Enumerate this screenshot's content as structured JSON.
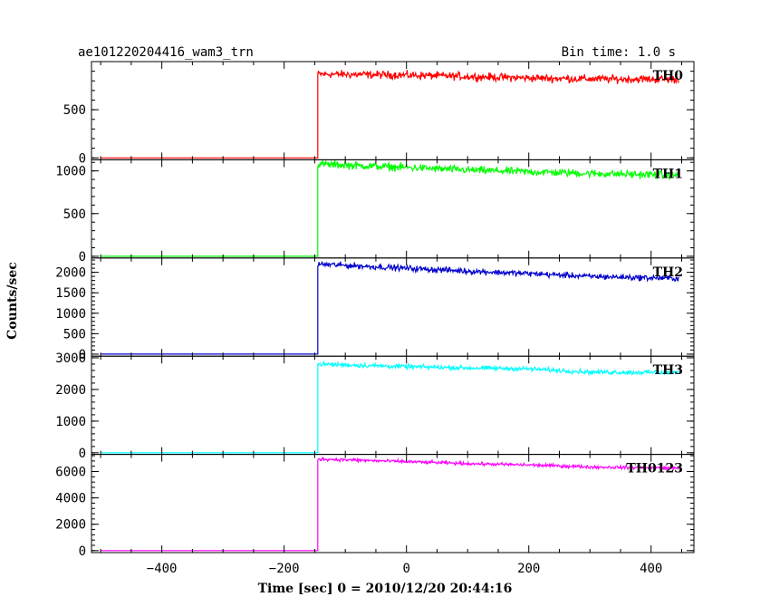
{
  "chart_data": {
    "type": "line",
    "title": "ae101220204416_wam3_trn",
    "subtitle": "Bin time: 1.0 s",
    "xlabel": "Time [sec] 0 = 2010/12/20 20:44:16",
    "ylabel": "Counts/sec",
    "xlim": [
      -515,
      470
    ],
    "xticks": [
      -400,
      -200,
      0,
      200,
      400
    ],
    "x_range": [
      -500,
      445
    ],
    "onset_x": -145,
    "grid": false,
    "panels": [
      {
        "name": "TH0",
        "color": "#ff0000",
        "ylim": [
          -20,
          1000
        ],
        "yticks": [
          0,
          500
        ],
        "baseline": 0,
        "noise": 40,
        "points": [
          [
            -145,
            870
          ],
          [
            0,
            860
          ],
          [
            100,
            845
          ],
          [
            200,
            830
          ],
          [
            300,
            820
          ],
          [
            445,
            815
          ]
        ]
      },
      {
        "name": "TH1",
        "color": "#00ff00",
        "ylim": [
          -20,
          1130
        ],
        "yticks": [
          0,
          500,
          1000
        ],
        "baseline": 0,
        "noise": 45,
        "points": [
          [
            -145,
            1080
          ],
          [
            0,
            1040
          ],
          [
            100,
            1010
          ],
          [
            200,
            990
          ],
          [
            300,
            970
          ],
          [
            445,
            950
          ]
        ]
      },
      {
        "name": "TH2",
        "color": "#0000cc",
        "ylim": [
          -50,
          2350
        ],
        "yticks": [
          0,
          500,
          1000,
          1500,
          2000
        ],
        "baseline": 0,
        "noise": 70,
        "points": [
          [
            -145,
            2200
          ],
          [
            0,
            2100
          ],
          [
            100,
            2030
          ],
          [
            200,
            1970
          ],
          [
            300,
            1900
          ],
          [
            445,
            1850
          ]
        ]
      },
      {
        "name": "TH3",
        "color": "#00ffff",
        "ylim": [
          -50,
          3050
        ],
        "yticks": [
          0,
          1000,
          2000,
          3000
        ],
        "baseline": 0,
        "noise": 70,
        "points": [
          [
            -145,
            2800
          ],
          [
            0,
            2720
          ],
          [
            100,
            2680
          ],
          [
            200,
            2650
          ],
          [
            300,
            2550
          ],
          [
            445,
            2530
          ]
        ]
      },
      {
        "name": "TH0123",
        "color": "#ff00ff",
        "ylim": [
          -150,
          7300
        ],
        "yticks": [
          0,
          2000,
          4000,
          6000
        ],
        "baseline": 0,
        "noise": 120,
        "points": [
          [
            -145,
            6950
          ],
          [
            0,
            6750
          ],
          [
            100,
            6600
          ],
          [
            200,
            6500
          ],
          [
            300,
            6350
          ],
          [
            445,
            6250
          ]
        ]
      }
    ]
  }
}
